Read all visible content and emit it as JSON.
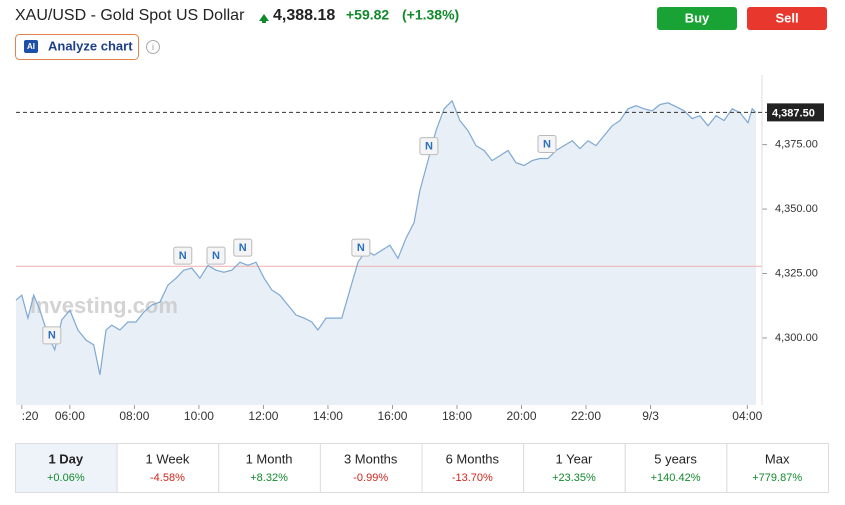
{
  "header": {
    "title": "XAU/USD - Gold Spot US Dollar",
    "price": "4,388.18",
    "change": "+59.82",
    "change_pct": "(+1.38%)"
  },
  "buttons": {
    "analyze": "Analyze chart",
    "buy": "Buy",
    "sell": "Sell"
  },
  "chart_data": {
    "type": "line",
    "watermark": "Investing.com",
    "color": "#7ea9d3",
    "area_color": "#e8eff7",
    "x": [
      4.33,
      4.51,
      4.7,
      4.88,
      5.07,
      5.32,
      5.53,
      5.75,
      6.0,
      6.25,
      6.5,
      6.74,
      6.93,
      7.12,
      7.3,
      7.55,
      7.8,
      8.05,
      8.29,
      8.54,
      8.79,
      9.04,
      9.29,
      9.53,
      9.78,
      10.03,
      10.28,
      10.53,
      10.77,
      11.02,
      11.27,
      11.52,
      11.77,
      12.02,
      12.26,
      12.51,
      12.76,
      13.01,
      13.26,
      13.5,
      13.69,
      13.94,
      14.19,
      14.43,
      14.68,
      14.93,
      15.18,
      15.43,
      15.67,
      15.92,
      16.17,
      16.42,
      16.67,
      16.85,
      17.1,
      17.35,
      17.6,
      17.85,
      18.09,
      18.34,
      18.59,
      18.84,
      19.09,
      19.33,
      19.58,
      19.83,
      20.08,
      20.33,
      20.57,
      20.82,
      21.07,
      21.32,
      21.57,
      21.81,
      22.06,
      22.31,
      22.56,
      22.81,
      23.05,
      23.3,
      23.55,
      23.8,
      24.05,
      24.29,
      24.54,
      24.79,
      25.04,
      25.29,
      25.53,
      25.78,
      26.03,
      26.28,
      26.53,
      26.77,
      27.02,
      27.15,
      27.27
    ],
    "values": [
      4314.7,
      4316.6,
      4307.7,
      4316.6,
      4310.8,
      4301.2,
      4295.4,
      4307.0,
      4310.8,
      4303.1,
      4299.2,
      4297.3,
      4285.7,
      4303.1,
      4305.0,
      4303.1,
      4306.2,
      4306.2,
      4310.0,
      4312.8,
      4313.9,
      4320.5,
      4323.2,
      4326.3,
      4327.1,
      4323.2,
      4328.2,
      4326.3,
      4325.5,
      4326.3,
      4329.4,
      4328.2,
      4329.4,
      4323.2,
      4318.6,
      4316.6,
      4312.8,
      4308.9,
      4307.7,
      4306.2,
      4303.1,
      4307.7,
      4307.7,
      4307.7,
      4318.6,
      4329.4,
      4334.0,
      4332.1,
      4334.0,
      4336.0,
      4330.9,
      4338.7,
      4344.8,
      4357.2,
      4368.8,
      4380.4,
      4388.9,
      4392.0,
      4384.3,
      4380.4,
      4374.6,
      4372.7,
      4368.8,
      4370.7,
      4372.7,
      4368.0,
      4366.9,
      4368.8,
      4369.6,
      4369.6,
      4372.7,
      4374.6,
      4376.5,
      4373.5,
      4376.5,
      4374.6,
      4378.5,
      4382.3,
      4384.3,
      4388.9,
      4390.1,
      4388.9,
      4388.1,
      4390.5,
      4391.2,
      4389.7,
      4388.1,
      4385.1,
      4386.2,
      4382.3,
      4386.2,
      4384.3,
      4388.9,
      4387.4,
      4383.5,
      4388.9,
      4387.4
    ],
    "xlim": [
      4.33,
      27.3
    ],
    "ylim": [
      4274,
      4402
    ],
    "xticks": [
      {
        "value": 4.51,
        "label": ":20"
      },
      {
        "value": 6,
        "label": "06:00"
      },
      {
        "value": 8,
        "label": "08:00"
      },
      {
        "value": 10,
        "label": "10:00"
      },
      {
        "value": 12,
        "label": "12:00"
      },
      {
        "value": 14,
        "label": "14:00"
      },
      {
        "value": 16,
        "label": "16:00"
      },
      {
        "value": 18,
        "label": "18:00"
      },
      {
        "value": 20,
        "label": "20:00"
      },
      {
        "value": 22,
        "label": "22:00"
      },
      {
        "value": 24,
        "label": "9/3"
      },
      {
        "value": 27,
        "label": "04:00"
      }
    ],
    "yticks": [
      {
        "value": 4300,
        "label": "4,300.00"
      },
      {
        "value": 4325,
        "label": "4,325.00"
      },
      {
        "value": 4350,
        "label": "4,350.00"
      },
      {
        "value": 4375,
        "label": "4,375.00"
      }
    ],
    "price_line": {
      "value": 4387.5,
      "label": "4,387.50"
    },
    "previous_close": 4327.8,
    "news_markers": [
      {
        "x": 5.44,
        "label": "N"
      },
      {
        "x": 9.5,
        "label": "N"
      },
      {
        "x": 10.53,
        "label": "N"
      },
      {
        "x": 11.36,
        "label": "N"
      },
      {
        "x": 15.02,
        "label": "N"
      },
      {
        "x": 17.13,
        "label": "N"
      },
      {
        "x": 20.79,
        "label": "N"
      }
    ]
  },
  "periods": [
    {
      "label": "1 Day",
      "change": "+0.06%"
    },
    {
      "label": "1 Week",
      "change": "-4.58%"
    },
    {
      "label": "1 Month",
      "change": "+8.32%"
    },
    {
      "label": "3 Months",
      "change": "-0.99%"
    },
    {
      "label": "6 Months",
      "change": "-13.70%"
    },
    {
      "label": "1 Year",
      "change": "+23.35%"
    },
    {
      "label": "5 years",
      "change": "+140.42%"
    },
    {
      "label": "Max",
      "change": "+779.87%"
    }
  ]
}
